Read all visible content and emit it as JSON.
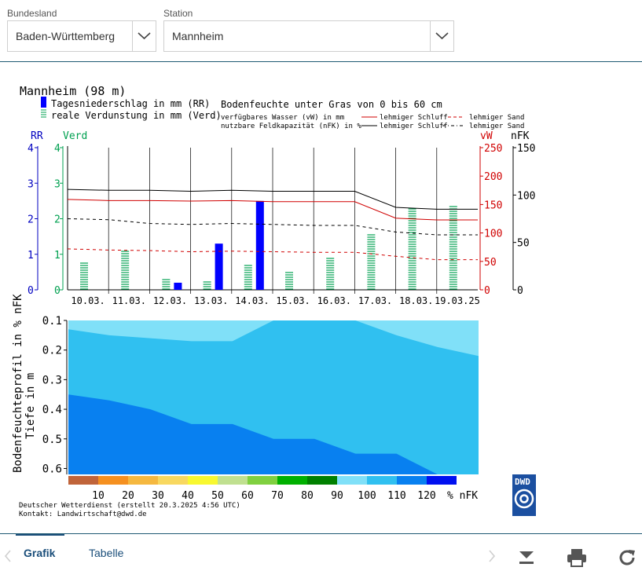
{
  "filters": {
    "state_label": "Bundesland",
    "state_value": "Baden-Württemberg",
    "station_label": "Station",
    "station_value": "Mannheim"
  },
  "tabs": [
    {
      "label": "Grafik",
      "active": true
    },
    {
      "label": "Tabelle",
      "active": false
    }
  ],
  "toolbar": {
    "prev_icon": "chevron-left-icon",
    "next_icon": "chevron-right-icon",
    "download_icon": "download-icon",
    "print_icon": "print-icon",
    "refresh_icon": "refresh-icon"
  },
  "chart_data": {
    "type": "bar",
    "title": "Mannheim (98 m)",
    "legend_left": [
      "Tagesniederschlag in mm (RR)",
      "reale Verdunstung in mm (Verd)"
    ],
    "legend_right_title": "Bodenfeuchte unter Gras von 0 bis 60 cm",
    "legend_right_rows": [
      {
        "text": "verfügbares Wasser (vW) in mm",
        "a": "lehmiger Schluff",
        "b": "lehmiger Sand"
      },
      {
        "text": "nutzbare Feldkapazität (nFK) in %",
        "a": "lehmiger Schluff",
        "b": "lehmiger Sand"
      }
    ],
    "axis_rr_label": "RR",
    "axis_verd_label": "Verd",
    "axis_vw_label": "vW",
    "axis_nfk_label": "nFK",
    "rr_ticks": [
      "0",
      "1",
      "2",
      "3",
      "4"
    ],
    "verd_ticks": [
      "0",
      "1",
      "2",
      "3",
      "4"
    ],
    "vw_ticks": [
      "0",
      "50",
      "100",
      "150",
      "200",
      "250"
    ],
    "nfk_ticks": [
      "0",
      "50",
      "100",
      "150"
    ],
    "rr_ylim": [
      0,
      4
    ],
    "vw_ylim": [
      0,
      250
    ],
    "nfk_ylim": [
      0,
      150
    ],
    "categories": [
      "10.03.",
      "11.03.",
      "12.03.",
      "13.03.",
      "14.03.",
      "15.03.",
      "16.03.",
      "17.03.",
      "18.03.",
      "19.03.25"
    ],
    "series": [
      {
        "name": "Tagesniederschlag in mm (RR)",
        "color": "#0000ff",
        "values": [
          0,
          0,
          0.2,
          1.3,
          2.5,
          0,
          0,
          0,
          0,
          0
        ]
      },
      {
        "name": "reale Verdunstung in mm (Verd)",
        "color": "#00a050",
        "values": [
          0.8,
          1.1,
          0.35,
          0.25,
          0.7,
          0.55,
          0.95,
          1.6,
          2.3,
          2.35
        ]
      },
      {
        "name": "vW lehmiger Schluff",
        "color": "#d00000",
        "values": [
          159,
          157,
          157,
          156,
          157,
          155,
          155,
          155,
          126,
          123
        ]
      },
      {
        "name": "vW lehmiger Sand",
        "color": "#d00000",
        "values": [
          72,
          70,
          69,
          67,
          68,
          67,
          66,
          66,
          59,
          53
        ]
      },
      {
        "name": "nFK lehmiger Schluff",
        "color": "#000000",
        "values": [
          106,
          105,
          105,
          104,
          105,
          104,
          104,
          104,
          87,
          85
        ]
      },
      {
        "name": "nFK lehmiger Sand",
        "color": "#000000",
        "values": [
          75,
          74,
          70,
          69,
          70,
          69,
          68,
          68,
          61,
          58
        ]
      }
    ],
    "profile": {
      "ylabel_1": "Bodenfeuchteprofil in % nFK",
      "ylabel_2": "Tiefe in m",
      "depth_ticks": [
        "0.1",
        "0.2",
        "0.3",
        "0.4",
        "0.5",
        "0.6"
      ],
      "depth_range": [
        0.1,
        0.62
      ],
      "band_colors": [
        "#80e0f8",
        "#30c0f0",
        "#0880f0"
      ],
      "boundary_90_100": [
        0.13,
        0.15,
        0.16,
        0.17,
        0.17,
        0.1,
        0.1,
        0.1,
        0.15,
        0.19,
        0.22
      ],
      "boundary_100_110": [
        0.35,
        0.37,
        0.4,
        0.45,
        0.45,
        0.5,
        0.5,
        0.55,
        0.55,
        0.62,
        0.62
      ]
    },
    "color_scale": {
      "colors": [
        "#c0643a",
        "#f59020",
        "#f5b840",
        "#f8d860",
        "#f8f830",
        "#c0e090",
        "#80d040",
        "#00b000",
        "#008000",
        "#80e0f8",
        "#30c0f0",
        "#0880f0",
        "#0010f0"
      ],
      "labels": [
        "10",
        "20",
        "30",
        "40",
        "50",
        "60",
        "70",
        "80",
        "90",
        "100",
        "110",
        "120",
        "% nFK"
      ]
    },
    "footer": [
      "Deutscher Wetterdienst (erstellt 20.3.2025 4:56 UTC)",
      "Kontakt: Landwirtschaft@dwd.de"
    ],
    "logo_text": "DWD"
  }
}
